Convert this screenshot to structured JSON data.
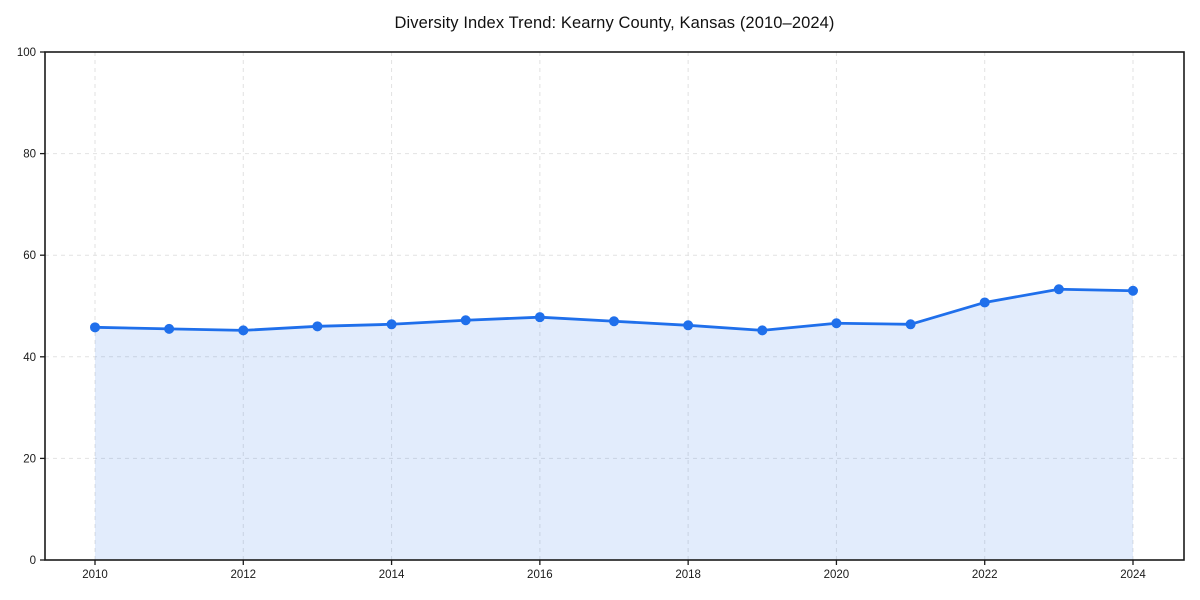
{
  "page": {
    "background_color": "#ffffff",
    "text_color": "#111111"
  },
  "chart_data": {
    "type": "area",
    "title": "Diversity Index Trend: Kearny County, Kansas (2010–2024)",
    "series_name": "Diversity Index",
    "x": [
      2010,
      2011,
      2012,
      2013,
      2014,
      2015,
      2016,
      2017,
      2018,
      2019,
      2020,
      2021,
      2022,
      2023,
      2024
    ],
    "values": [
      45.8,
      45.5,
      45.2,
      46.0,
      46.4,
      47.2,
      47.8,
      47.0,
      46.2,
      45.2,
      46.6,
      46.4,
      50.7,
      53.3,
      53.0
    ],
    "xlabel": "",
    "ylabel": "",
    "ylim": [
      0,
      100
    ],
    "yticks": [
      0,
      20,
      40,
      60,
      80,
      100
    ],
    "xticks": [
      2010,
      2012,
      2014,
      2016,
      2018,
      2020,
      2022,
      2024
    ],
    "grid": true,
    "grid_style": "dashed",
    "legend": false,
    "colors": {
      "line": "#1f6feb",
      "marker": "#1f6feb",
      "fill": "rgba(31,111,235,0.13)",
      "grid": "#e2e2e2",
      "spine": "#1a1a1a",
      "tick_text": "#1a1a1a"
    }
  }
}
